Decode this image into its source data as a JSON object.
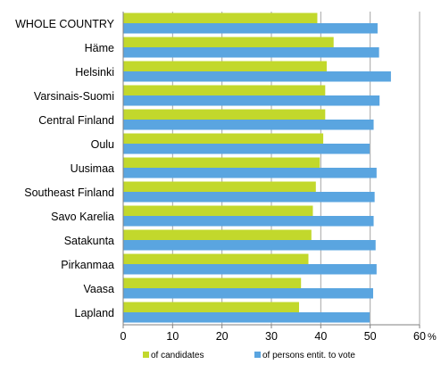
{
  "chart_data": {
    "type": "bar",
    "orientation": "horizontal",
    "categories": [
      "WHOLE COUNTRY",
      "Häme",
      "Helsinki",
      "Varsinais-Suomi",
      "Central Finland",
      "Oulu",
      "Uusimaa",
      "Southeast Finland",
      "Savo Karelia",
      "Satakunta",
      "Pirkanmaa",
      "Vaasa",
      "Lapland"
    ],
    "series": [
      {
        "name": "of candidates",
        "color": "#c2d82c",
        "values": [
          39.3,
          42.6,
          41.2,
          40.9,
          40.9,
          40.5,
          39.8,
          39.0,
          38.4,
          38.1,
          37.5,
          36.0,
          35.6
        ]
      },
      {
        "name": "of persons entit. to vote",
        "color": "#5aa5e0",
        "values": [
          51.5,
          51.8,
          54.2,
          51.9,
          50.7,
          49.9,
          51.3,
          50.9,
          50.7,
          51.1,
          51.3,
          50.6,
          49.9
        ]
      }
    ],
    "xlim": [
      0,
      60
    ],
    "xticks": [
      0,
      10,
      20,
      30,
      40,
      50,
      60
    ],
    "x_unit": "%",
    "grid": "vertical major gridlines",
    "legend_position": "bottom"
  }
}
